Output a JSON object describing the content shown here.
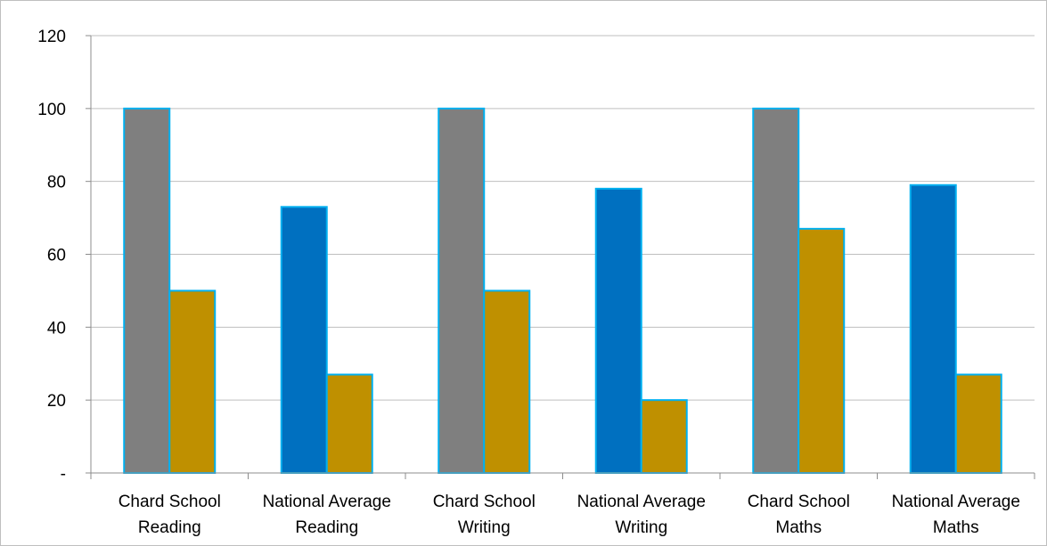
{
  "chart_data": {
    "type": "bar",
    "categories": [
      [
        "Chard School",
        "Reading"
      ],
      [
        "National Average",
        "Reading"
      ],
      [
        "Chard School",
        "Writing"
      ],
      [
        "National Average",
        "Writing"
      ],
      [
        "Chard School",
        "Maths"
      ],
      [
        "National Average",
        "Maths"
      ]
    ],
    "series": [
      {
        "values": [
          100,
          73,
          100,
          78,
          100,
          79
        ]
      },
      {
        "values": [
          50,
          27,
          50,
          20,
          67,
          27
        ]
      }
    ],
    "first_series_colors": [
      "#7f7f7f",
      "#0070c0",
      "#7f7f7f",
      "#0070c0",
      "#7f7f7f",
      "#0070c0"
    ],
    "second_series_color": "#bf9000",
    "bar_border_color": "#00b0f0",
    "ylim": [
      0,
      120
    ],
    "yticks": [
      {
        "value": 0,
        "label": "-"
      },
      {
        "value": 20,
        "label": "20"
      },
      {
        "value": 40,
        "label": "40"
      },
      {
        "value": 60,
        "label": "60"
      },
      {
        "value": 80,
        "label": "80"
      },
      {
        "value": 100,
        "label": "100"
      },
      {
        "value": 120,
        "label": "120"
      }
    ],
    "grid": true,
    "legend": "none",
    "title": "",
    "xlabel": "",
    "ylabel": ""
  }
}
